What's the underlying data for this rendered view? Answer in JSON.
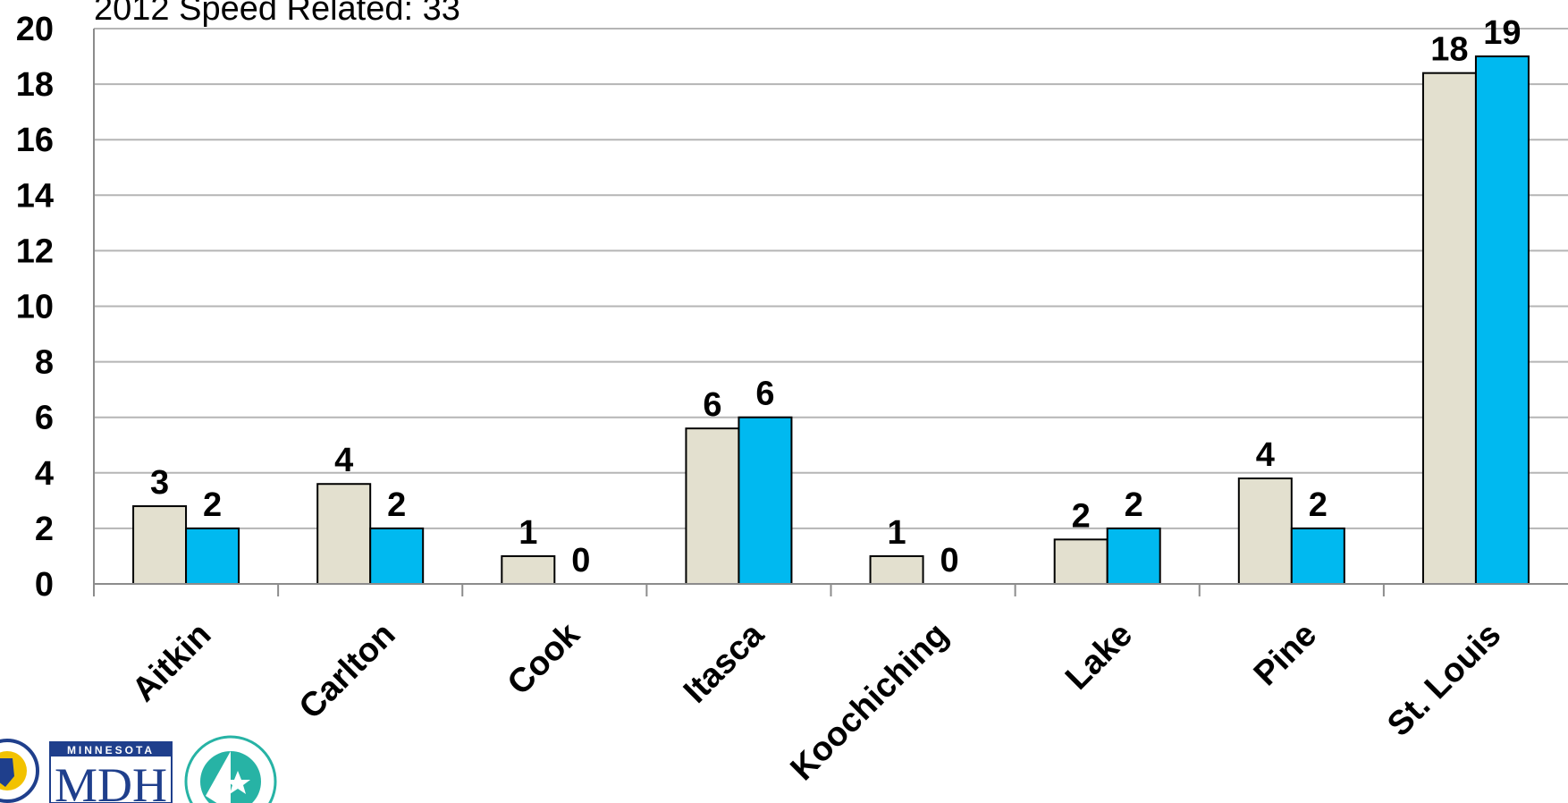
{
  "chart_data": {
    "type": "bar",
    "title": "2012 Speed Related:  33",
    "xlabel": "",
    "ylabel": "",
    "ylim": [
      0,
      20
    ],
    "yticks": [
      0,
      2,
      4,
      6,
      8,
      10,
      12,
      14,
      16,
      18,
      20
    ],
    "grid": true,
    "categories": [
      "Aitkin",
      "Carlton",
      "Cook",
      "Itasca",
      "Koochiching",
      "Lake",
      "Pine",
      "St. Louis"
    ],
    "series": [
      {
        "color": "#e3e0cf",
        "values": [
          2.8,
          3.6,
          1.0,
          5.6,
          1.0,
          1.6,
          3.8,
          18.4
        ],
        "labels": [
          "3",
          "4",
          "1",
          "6",
          "1",
          "2",
          "4",
          "18"
        ]
      },
      {
        "color": "#00b9f0",
        "values": [
          2.0,
          2.0,
          0,
          6.0,
          0,
          2.0,
          2.0,
          19.0
        ],
        "labels": [
          "2",
          "2",
          "0",
          "6",
          "0",
          "2",
          "2",
          "19"
        ]
      }
    ]
  },
  "logos": {
    "dps": {
      "name": "dps-logo",
      "color": "#1f3f8c"
    },
    "mdh": {
      "name": "mdh-logo",
      "top_text": "MINNESOTA",
      "text": "MDH",
      "color": "#1f3f8c"
    },
    "mndot": {
      "name": "mndot-logo",
      "color": "#27b3a5"
    }
  }
}
